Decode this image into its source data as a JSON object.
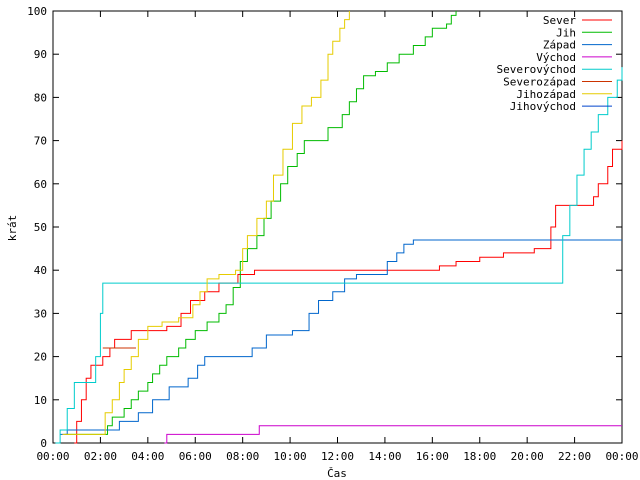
{
  "chart_data": {
    "type": "line",
    "xlabel": "Čas",
    "ylabel": "krát",
    "xlim": [
      0,
      24
    ],
    "ylim": [
      0,
      100
    ],
    "x_ticks": [
      {
        "value": 0,
        "label": "00:00"
      },
      {
        "value": 2,
        "label": "02:00"
      },
      {
        "value": 4,
        "label": "04:00"
      },
      {
        "value": 6,
        "label": "06:00"
      },
      {
        "value": 8,
        "label": "08:00"
      },
      {
        "value": 10,
        "label": "10:00"
      },
      {
        "value": 12,
        "label": "12:00"
      },
      {
        "value": 14,
        "label": "14:00"
      },
      {
        "value": 16,
        "label": "16:00"
      },
      {
        "value": 18,
        "label": "18:00"
      },
      {
        "value": 20,
        "label": "20:00"
      },
      {
        "value": 22,
        "label": "22:00"
      },
      {
        "value": 24,
        "label": "00:00"
      }
    ],
    "y_ticks": [
      0,
      10,
      20,
      30,
      40,
      50,
      60,
      70,
      80,
      90,
      100
    ],
    "grid": false,
    "legend_position": "top-right",
    "series": [
      {
        "name": "Sever",
        "color": "#ff0000",
        "points": [
          [
            0.9,
            0
          ],
          [
            1.0,
            5
          ],
          [
            1.2,
            10
          ],
          [
            1.4,
            15
          ],
          [
            1.6,
            18
          ],
          [
            2.1,
            20
          ],
          [
            2.4,
            22
          ],
          [
            2.6,
            24
          ],
          [
            3.3,
            26
          ],
          [
            4.8,
            27
          ],
          [
            5.4,
            30
          ],
          [
            5.8,
            33
          ],
          [
            6.4,
            35
          ],
          [
            7.0,
            37
          ],
          [
            7.8,
            39
          ],
          [
            8.5,
            40
          ],
          [
            14.0,
            40
          ],
          [
            16.3,
            41
          ],
          [
            17.0,
            42
          ],
          [
            18.0,
            43
          ],
          [
            19.0,
            44
          ],
          [
            20.3,
            45
          ],
          [
            21.0,
            50
          ],
          [
            21.2,
            55
          ],
          [
            22.8,
            57
          ],
          [
            23.0,
            60
          ],
          [
            23.4,
            64
          ],
          [
            23.6,
            68
          ],
          [
            24,
            70
          ]
        ]
      },
      {
        "name": "Jih",
        "color": "#00bb00",
        "points": [
          [
            0.5,
            2
          ],
          [
            2.0,
            2
          ],
          [
            2.3,
            4
          ],
          [
            2.5,
            6
          ],
          [
            3.0,
            8
          ],
          [
            3.3,
            10
          ],
          [
            3.6,
            12
          ],
          [
            4.0,
            14
          ],
          [
            4.2,
            16
          ],
          [
            4.5,
            18
          ],
          [
            4.8,
            20
          ],
          [
            5.3,
            22
          ],
          [
            5.6,
            24
          ],
          [
            6.0,
            26
          ],
          [
            6.5,
            28
          ],
          [
            7.0,
            30
          ],
          [
            7.3,
            32
          ],
          [
            7.6,
            36
          ],
          [
            7.9,
            42
          ],
          [
            8.2,
            45
          ],
          [
            8.6,
            48
          ],
          [
            8.9,
            52
          ],
          [
            9.2,
            56
          ],
          [
            9.6,
            60
          ],
          [
            9.9,
            64
          ],
          [
            10.3,
            67
          ],
          [
            10.6,
            70
          ],
          [
            11.6,
            73
          ],
          [
            12.2,
            76
          ],
          [
            12.5,
            79
          ],
          [
            12.8,
            82
          ],
          [
            13.1,
            85
          ],
          [
            13.6,
            86
          ],
          [
            14.1,
            88
          ],
          [
            14.6,
            90
          ],
          [
            15.2,
            92
          ],
          [
            15.7,
            94
          ],
          [
            16.0,
            96
          ],
          [
            16.6,
            97
          ],
          [
            16.8,
            99
          ],
          [
            17.0,
            100
          ]
        ]
      },
      {
        "name": "Západ",
        "color": "#0066cc",
        "points": [
          [
            0.3,
            2
          ],
          [
            0.6,
            3
          ],
          [
            2.6,
            3
          ],
          [
            2.8,
            5
          ],
          [
            3.6,
            7
          ],
          [
            4.2,
            10
          ],
          [
            4.9,
            13
          ],
          [
            5.7,
            15
          ],
          [
            6.1,
            18
          ],
          [
            6.4,
            20
          ],
          [
            7.9,
            20
          ],
          [
            8.4,
            22
          ],
          [
            9.0,
            25
          ],
          [
            10.1,
            26
          ],
          [
            10.8,
            30
          ],
          [
            11.2,
            33
          ],
          [
            11.8,
            35
          ],
          [
            12.3,
            38
          ],
          [
            12.8,
            39
          ],
          [
            13.9,
            39
          ],
          [
            14.1,
            42
          ],
          [
            14.5,
            44
          ],
          [
            14.8,
            46
          ],
          [
            15.2,
            47
          ],
          [
            24,
            47
          ]
        ]
      },
      {
        "name": "Východ",
        "color": "#cc00cc",
        "points": [
          [
            4.7,
            0
          ],
          [
            4.8,
            2
          ],
          [
            8.6,
            2
          ],
          [
            8.7,
            4
          ],
          [
            24,
            4
          ]
        ]
      },
      {
        "name": "Severovýchod",
        "color": "#00cccc",
        "points": [
          [
            0.1,
            0
          ],
          [
            0.3,
            3
          ],
          [
            0.6,
            8
          ],
          [
            0.9,
            14
          ],
          [
            1.5,
            14
          ],
          [
            1.8,
            20
          ],
          [
            2.0,
            30
          ],
          [
            2.1,
            37
          ],
          [
            2.8,
            37
          ],
          [
            21.2,
            37
          ],
          [
            21.5,
            48
          ],
          [
            21.8,
            55
          ],
          [
            22.1,
            62
          ],
          [
            22.4,
            68
          ],
          [
            22.7,
            72
          ],
          [
            23.0,
            76
          ],
          [
            23.4,
            80
          ],
          [
            23.8,
            84
          ],
          [
            24,
            87
          ]
        ]
      },
      {
        "name": "Severozápad",
        "color": "#cc3300",
        "points": [
          [
            2.1,
            22
          ],
          [
            2.3,
            22
          ],
          [
            2.5,
            22
          ],
          [
            2.7,
            22
          ],
          [
            3.5,
            22
          ]
        ]
      },
      {
        "name": "Jihozápad",
        "color": "#e6cc00",
        "points": [
          [
            0.4,
            2
          ],
          [
            2.0,
            2
          ],
          [
            2.2,
            7
          ],
          [
            2.5,
            10
          ],
          [
            2.8,
            14
          ],
          [
            3.0,
            17
          ],
          [
            3.3,
            20
          ],
          [
            3.6,
            24
          ],
          [
            4.0,
            27
          ],
          [
            4.6,
            28
          ],
          [
            5.3,
            29
          ],
          [
            5.9,
            32
          ],
          [
            6.2,
            35
          ],
          [
            6.5,
            38
          ],
          [
            7.0,
            39
          ],
          [
            7.7,
            40
          ],
          [
            8.0,
            45
          ],
          [
            8.2,
            48
          ],
          [
            8.6,
            52
          ],
          [
            9.0,
            56
          ],
          [
            9.3,
            62
          ],
          [
            9.7,
            68
          ],
          [
            10.1,
            74
          ],
          [
            10.5,
            78
          ],
          [
            10.9,
            80
          ],
          [
            11.3,
            84
          ],
          [
            11.6,
            90
          ],
          [
            11.8,
            93
          ],
          [
            12.1,
            96
          ],
          [
            12.3,
            98
          ],
          [
            12.5,
            100
          ]
        ]
      },
      {
        "name": "Jihovýchod",
        "color": "#0044cc",
        "points": []
      }
    ]
  }
}
